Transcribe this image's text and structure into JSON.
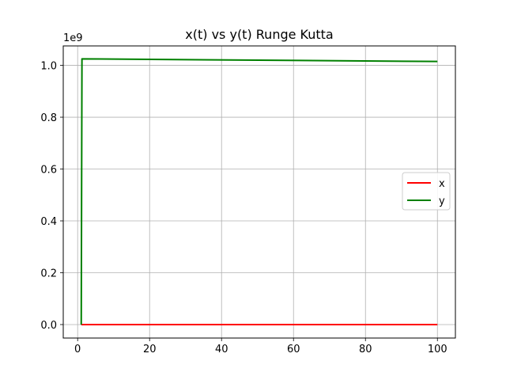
{
  "chart_data": {
    "type": "line",
    "title": "x(t) vs y(t) Runge Kutta",
    "xlabel": "",
    "ylabel": "",
    "y_offset_label": "1e9",
    "xlim": [
      -4.0,
      105.0
    ],
    "ylim": [
      -0.052,
      1.075
    ],
    "xticks": [
      0,
      20,
      40,
      60,
      80,
      100
    ],
    "yticks": [
      0.0,
      0.2,
      0.4,
      0.6,
      0.8,
      1.0
    ],
    "xtick_labels": [
      "0",
      "20",
      "40",
      "60",
      "80",
      "100"
    ],
    "ytick_labels": [
      "0.0",
      "0.2",
      "0.4",
      "0.6",
      "0.8",
      "1.0"
    ],
    "grid": true,
    "legend_position": "center-right",
    "series": [
      {
        "name": "x",
        "color": "#ff0000",
        "points": [
          [
            1,
            0.0
          ],
          [
            100,
            0.0
          ]
        ]
      },
      {
        "name": "y",
        "color": "#008000",
        "points": [
          [
            1,
            0.0
          ],
          [
            1.2,
            1.025
          ],
          [
            100,
            1.015
          ]
        ]
      }
    ]
  }
}
